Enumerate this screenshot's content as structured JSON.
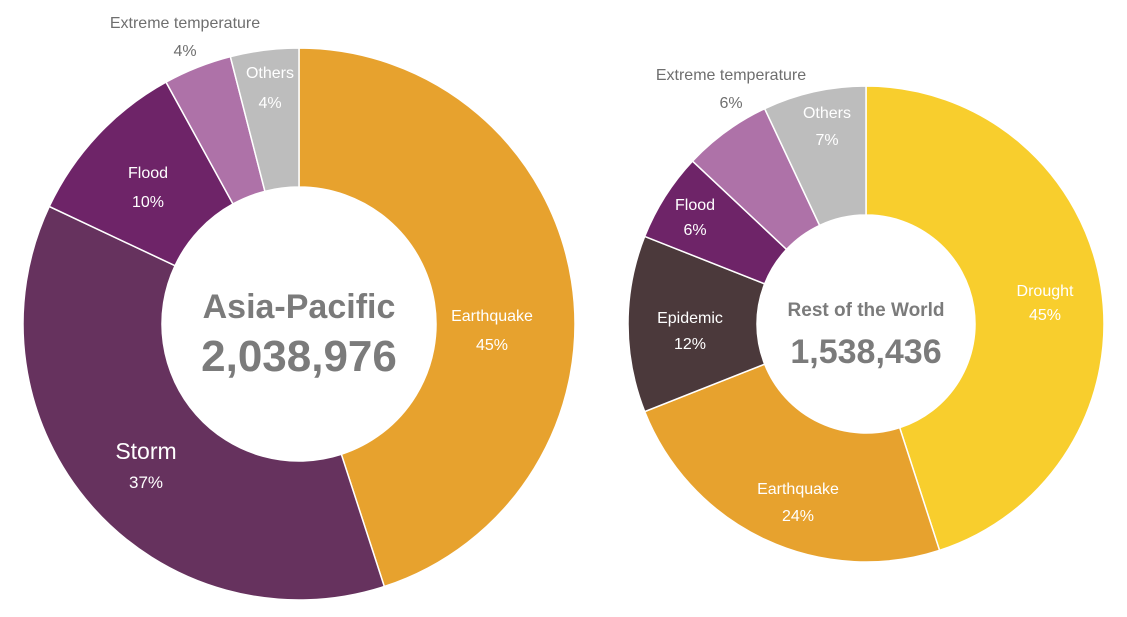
{
  "chart_data": [
    {
      "type": "pie",
      "title": "Asia-Pacific",
      "total": "2,038,976",
      "slices": [
        {
          "label": "Earthquake",
          "value": 45,
          "pct": "45%",
          "color": "#E7A22E"
        },
        {
          "label": "Storm",
          "value": 37,
          "pct": "37%",
          "color": "#66325E"
        },
        {
          "label": "Flood",
          "value": 10,
          "pct": "10%",
          "color": "#6E2468"
        },
        {
          "label": "Extreme temperature",
          "value": 4,
          "pct": "4%",
          "color": "#AE72A8"
        },
        {
          "label": "Others",
          "value": 4,
          "pct": "4%",
          "color": "#BDBDBD"
        }
      ]
    },
    {
      "type": "pie",
      "title": "Rest of the World",
      "total": "1,538,436",
      "slices": [
        {
          "label": "Drought",
          "value": 45,
          "pct": "45%",
          "color": "#F8CE2D"
        },
        {
          "label": "Earthquake",
          "value": 24,
          "pct": "24%",
          "color": "#E7A22E"
        },
        {
          "label": "Epidemic",
          "value": 12,
          "pct": "12%",
          "color": "#4B393B"
        },
        {
          "label": "Flood",
          "value": 6,
          "pct": "6%",
          "color": "#6E2468"
        },
        {
          "label": "Extreme temperature",
          "value": 6,
          "pct": "6%",
          "color": "#AE72A8"
        },
        {
          "label": "Others",
          "value": 7,
          "pct": "7%",
          "color": "#BDBDBD"
        }
      ]
    }
  ]
}
